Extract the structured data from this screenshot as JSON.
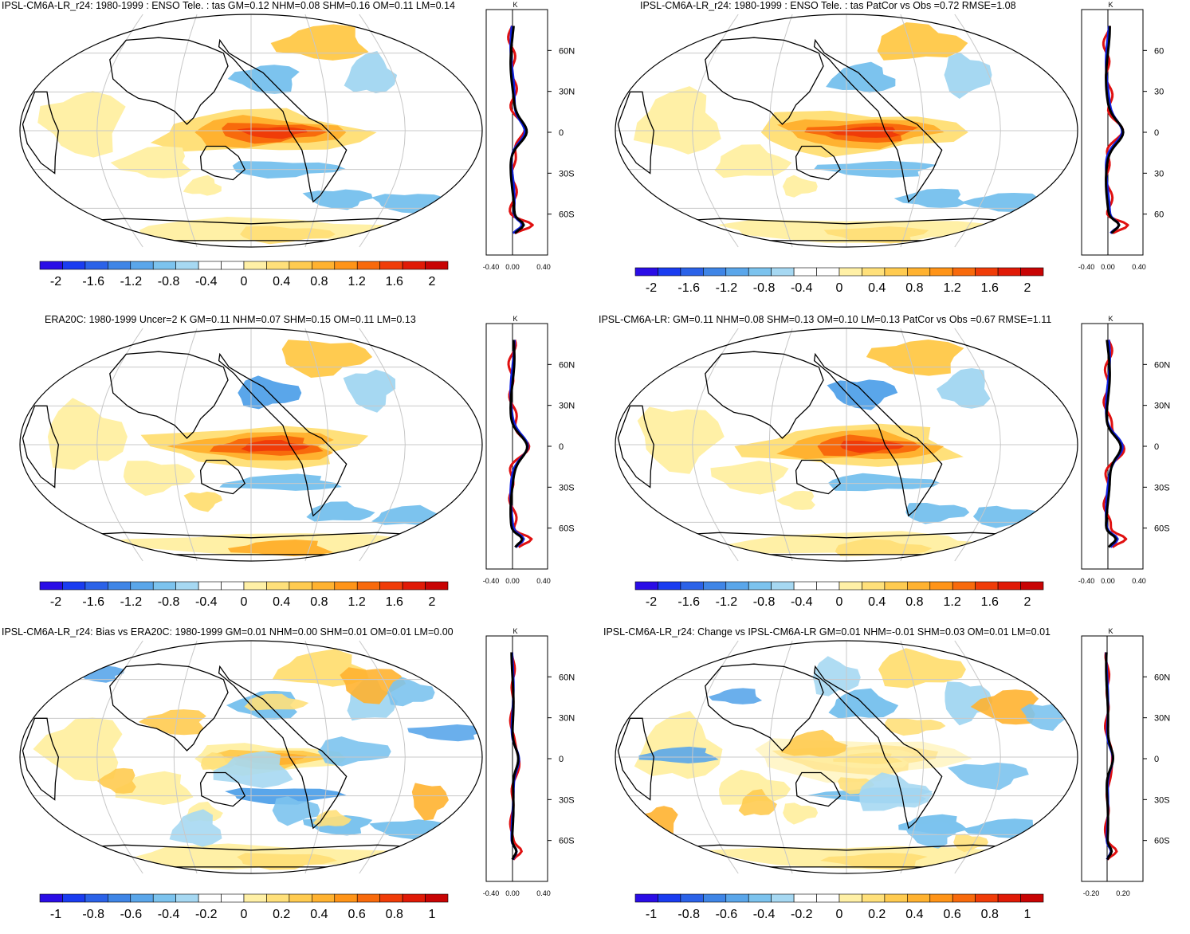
{
  "panels": [
    {
      "title": "IPSL-CM6A-LR_r24: 1980-1999 : ENSO Tele. : tas GM=0.12 NHM=0.08 SHM=0.16 OM=0.11 LM=0.14",
      "profile_unit": "K",
      "lat_ticks": [
        "60N",
        "30N",
        "0",
        "30S",
        "60S"
      ],
      "x_ticks": [
        "-0.40",
        "0.00",
        "0.40"
      ],
      "colorbar_labels": [
        "-2",
        "-1.6",
        "-1.2",
        "-0.8",
        "-0.4",
        "0",
        "0.4",
        "0.8",
        "1.2",
        "1.6",
        "2"
      ]
    },
    {
      "title": "IPSL-CM6A-LR_r24: 1980-1999 : ENSO Tele. : tas PatCor vs Obs =0.72 RMSE=1.08",
      "profile_unit": "K",
      "lat_ticks": [
        "60",
        "30",
        "0",
        "30",
        "60"
      ],
      "x_ticks": [
        "-0.40",
        "0.00",
        "0.40"
      ],
      "colorbar_labels": [
        "-2",
        "-1.6",
        "-1.2",
        "-0.8",
        "-0.4",
        "0",
        "0.4",
        "0.8",
        "1.2",
        "1.6",
        "2"
      ]
    },
    {
      "title": "ERA20C: 1980-1999 Uncer=2 K GM=0.11 NHM=0.07 SHM=0.15 OM=0.11 LM=0.13",
      "profile_unit": "K",
      "lat_ticks": [
        "60N",
        "30N",
        "0",
        "30S",
        "60S"
      ],
      "x_ticks": [
        "-0.40",
        "0.00",
        "0.40"
      ],
      "colorbar_labels": [
        "-2",
        "-1.6",
        "-1.2",
        "-0.8",
        "-0.4",
        "0",
        "0.4",
        "0.8",
        "1.2",
        "1.6",
        "2"
      ]
    },
    {
      "title": "IPSL-CM6A-LR: GM=0.11 NHM=0.08 SHM=0.13 OM=0.10 LM=0.13 PatCor vs Obs =0.67 RMSE=1.11",
      "profile_unit": "K",
      "lat_ticks": [
        "60N",
        "30N",
        "0",
        "30S",
        "60S"
      ],
      "x_ticks": [
        "-0.40",
        "0.00",
        "0.40"
      ],
      "colorbar_labels": [
        "-2",
        "-1.6",
        "-1.2",
        "-0.8",
        "-0.4",
        "0",
        "0.4",
        "0.8",
        "1.2",
        "1.6",
        "2"
      ]
    },
    {
      "title": "IPSL-CM6A-LR_r24: Bias vs ERA20C: 1980-1999 GM=0.01 NHM=0.00 SHM=0.01 OM=0.01 LM=0.00",
      "profile_unit": "K",
      "lat_ticks": [
        "60N",
        "30N",
        "0",
        "30S",
        "60S"
      ],
      "x_ticks": [
        "-0.40",
        "0.00",
        "0.40"
      ],
      "colorbar_labels": [
        "-1",
        "-0.8",
        "-0.6",
        "-0.4",
        "-0.2",
        "0",
        "0.2",
        "0.4",
        "0.6",
        "0.8",
        "1"
      ]
    },
    {
      "title": "IPSL-CM6A-LR_r24: Change vs IPSL-CM6A-LR GM=0.01 NHM=-0.01 SHM=0.03 OM=0.01 LM=0.01",
      "profile_unit": "K",
      "lat_ticks": [
        "60N",
        "30N",
        "0",
        "30S",
        "60S"
      ],
      "x_ticks": [
        "-0.20",
        "0.20"
      ],
      "colorbar_labels": [
        "-1",
        "-0.8",
        "-0.6",
        "-0.4",
        "-0.2",
        "0",
        "0.2",
        "0.4",
        "0.6",
        "0.8",
        "1"
      ]
    }
  ],
  "colors": {
    "palette": [
      "#2a0de6",
      "#1a3cf0",
      "#2b62e8",
      "#3f85e6",
      "#5aa6ea",
      "#7cc3ee",
      "#a6d8f2",
      "#ffffff",
      "#ffffff",
      "#fff0a6",
      "#ffe07a",
      "#ffcb50",
      "#ffb230",
      "#ff9418",
      "#f86a0c",
      "#f03c08",
      "#e01a06",
      "#c80404"
    ],
    "profile_series": [
      "#e01010",
      "#1020e0",
      "#000000"
    ]
  }
}
